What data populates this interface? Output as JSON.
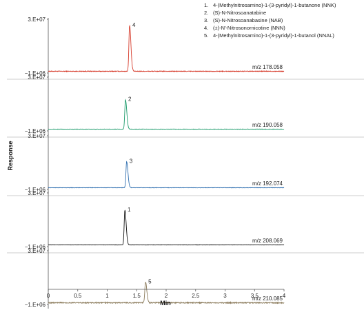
{
  "chart_data": {
    "type": "line",
    "xlabel": "Min",
    "ylabel": "Response",
    "xlim": [
      0,
      4
    ],
    "xticks": [
      "0",
      "0.5",
      "1",
      "1.5",
      "2",
      "2.5",
      "3",
      "3.5",
      "4"
    ],
    "ylim": [
      -1000000,
      30000000
    ],
    "yticks": [
      "3.E+07",
      "−1.E+06"
    ],
    "legend": {
      "placement": "top-right",
      "entries": [
        {
          "num": "1.",
          "text": "4-(Methylnitrosamino)-1-(3-pyridyl)-1-butanone (NNK)"
        },
        {
          "num": "2.",
          "text": "(S)-N-Nitrosoanatabine"
        },
        {
          "num": "3.",
          "text": "(S)-N-Nitrosoanabasine (NAB)"
        },
        {
          "num": "4.",
          "text": "(±)-N′-Nitrosonornicotine (NNN)"
        },
        {
          "num": "5.",
          "text": "4-(Methylnitrosamino)-1-(3-pyridyl)-1-butanol (NNAL)"
        }
      ]
    },
    "series": [
      {
        "mz": "m/z 178.058",
        "color": "#d63a2a",
        "peak_label": "4",
        "peak_x": 1.38,
        "peak_y": 26500000,
        "noise": 400000
      },
      {
        "mz": "m/z 190.058",
        "color": "#1a9a6a",
        "peak_label": "2",
        "peak_x": 1.31,
        "peak_y": 17000000,
        "noise": 200000
      },
      {
        "mz": "m/z 192.074",
        "color": "#2f6fb0",
        "peak_label": "3",
        "peak_x": 1.33,
        "peak_y": 15000000,
        "noise": 200000
      },
      {
        "mz": "m/z 208.069",
        "color": "#111111",
        "peak_label": "1",
        "peak_x": 1.3,
        "peak_y": 20000000,
        "noise": 150000
      },
      {
        "mz": "m/z 210.085",
        "color": "#8a7a5a",
        "peak_label": "5",
        "peak_x": 1.65,
        "peak_y": 12000000,
        "noise": 600000
      }
    ]
  }
}
